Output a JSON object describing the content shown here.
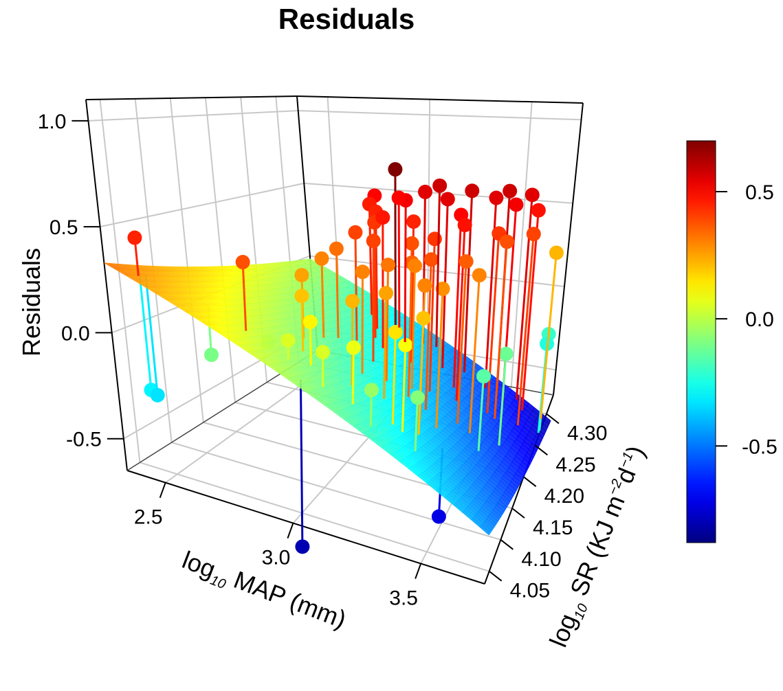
{
  "chart_data": {
    "type": "scatter3d",
    "title": "Residuals",
    "xlabel": {
      "prefix": "log",
      "sub": "10",
      "main": " MAP (mm)"
    },
    "ylabel": {
      "prefix": "log",
      "sub": "10",
      "main": " SR (KJ m",
      "sup1": "−2",
      "mid": "d",
      "sup2": "−1",
      "end": ")"
    },
    "zlabel": "Residuals",
    "xlim": [
      2.35,
      3.75
    ],
    "ylim": [
      4.03,
      4.33
    ],
    "zlim": [
      -0.65,
      1.1
    ],
    "x_ticks": [
      "2.5",
      "3.0",
      "3.5"
    ],
    "y_ticks": [
      "4.05",
      "4.10",
      "4.15",
      "4.20",
      "4.25",
      "4.30"
    ],
    "z_ticks": [
      "-0.5",
      "0.0",
      "0.5",
      "1.0"
    ],
    "grid": true,
    "colormap": "jet",
    "colorbar": {
      "range": [
        -0.88,
        0.7
      ],
      "ticks": [
        "-0.5",
        "0.0",
        "0.5"
      ],
      "placement": "right"
    },
    "fit_plane": {
      "intercept_at_xmin_ymin": 0.33,
      "slope_x": -0.56,
      "slope_y": -0.35
    },
    "points": [
      [
        2.42,
        4.05,
        0.45
      ],
      [
        2.74,
        4.08,
        0.38
      ],
      [
        2.4,
        4.06,
        -0.3
      ],
      [
        2.41,
        4.065,
        -0.33
      ],
      [
        3.0,
        4.05,
        -0.8
      ],
      [
        3.45,
        4.13,
        -0.72
      ],
      [
        3.72,
        4.3,
        -0.2
      ],
      [
        3.72,
        4.295,
        -0.24
      ],
      [
        3.7,
        4.32,
        0.22
      ],
      [
        2.95,
        4.28,
        0.7
      ],
      [
        3.05,
        4.3,
        0.55
      ],
      [
        2.8,
        4.3,
        0.5
      ],
      [
        2.8,
        4.29,
        0.46
      ],
      [
        2.88,
        4.27,
        0.45
      ],
      [
        2.92,
        4.25,
        0.42
      ],
      [
        2.9,
        4.22,
        0.4
      ],
      [
        2.86,
        4.2,
        0.33
      ],
      [
        2.84,
        4.18,
        0.3
      ],
      [
        2.82,
        4.15,
        0.25
      ],
      [
        2.88,
        4.12,
        0.2
      ],
      [
        2.98,
        4.24,
        0.47
      ],
      [
        3.02,
        4.2,
        0.4
      ],
      [
        3.05,
        4.16,
        0.3
      ],
      [
        3.08,
        4.12,
        0.22
      ],
      [
        3.1,
        4.25,
        0.45
      ],
      [
        3.15,
        4.22,
        0.38
      ],
      [
        3.12,
        4.18,
        0.32
      ],
      [
        3.2,
        4.28,
        0.55
      ],
      [
        3.28,
        4.3,
        0.58
      ],
      [
        3.3,
        4.26,
        0.5
      ],
      [
        3.25,
        4.22,
        0.42
      ],
      [
        3.22,
        4.18,
        0.35
      ],
      [
        3.18,
        4.14,
        0.25
      ],
      [
        3.3,
        4.18,
        0.38
      ],
      [
        3.32,
        4.15,
        0.3
      ],
      [
        3.35,
        4.24,
        0.48
      ],
      [
        3.4,
        4.3,
        0.55
      ],
      [
        3.45,
        4.31,
        0.58
      ],
      [
        3.5,
        4.3,
        0.52
      ],
      [
        3.55,
        4.32,
        0.55
      ],
      [
        3.6,
        4.31,
        0.48
      ],
      [
        3.48,
        4.26,
        0.42
      ],
      [
        3.42,
        4.2,
        0.36
      ],
      [
        3.38,
        4.16,
        0.28
      ],
      [
        3.36,
        4.12,
        0.2
      ],
      [
        3.28,
        4.1,
        0.15
      ],
      [
        3.15,
        4.08,
        0.08
      ],
      [
        3.05,
        4.07,
        0.05
      ],
      [
        2.95,
        4.1,
        0.12
      ],
      [
        2.9,
        4.08,
        0.05
      ],
      [
        2.78,
        4.1,
        -0.02
      ],
      [
        2.6,
        4.08,
        -0.1
      ],
      [
        3.25,
        4.06,
        -0.05
      ],
      [
        3.4,
        4.08,
        -0.08
      ],
      [
        3.55,
        4.18,
        -0.15
      ],
      [
        3.6,
        4.22,
        -0.12
      ],
      [
        3.32,
        4.1,
        0.1
      ],
      [
        3.48,
        4.2,
        0.3
      ],
      [
        3.52,
        4.26,
        0.38
      ],
      [
        3.62,
        4.28,
        0.4
      ],
      [
        3.0,
        4.28,
        0.52
      ],
      [
        2.92,
        4.3,
        0.5
      ],
      [
        3.1,
        4.31,
        0.58
      ],
      [
        3.2,
        4.2,
        0.3
      ]
    ]
  }
}
